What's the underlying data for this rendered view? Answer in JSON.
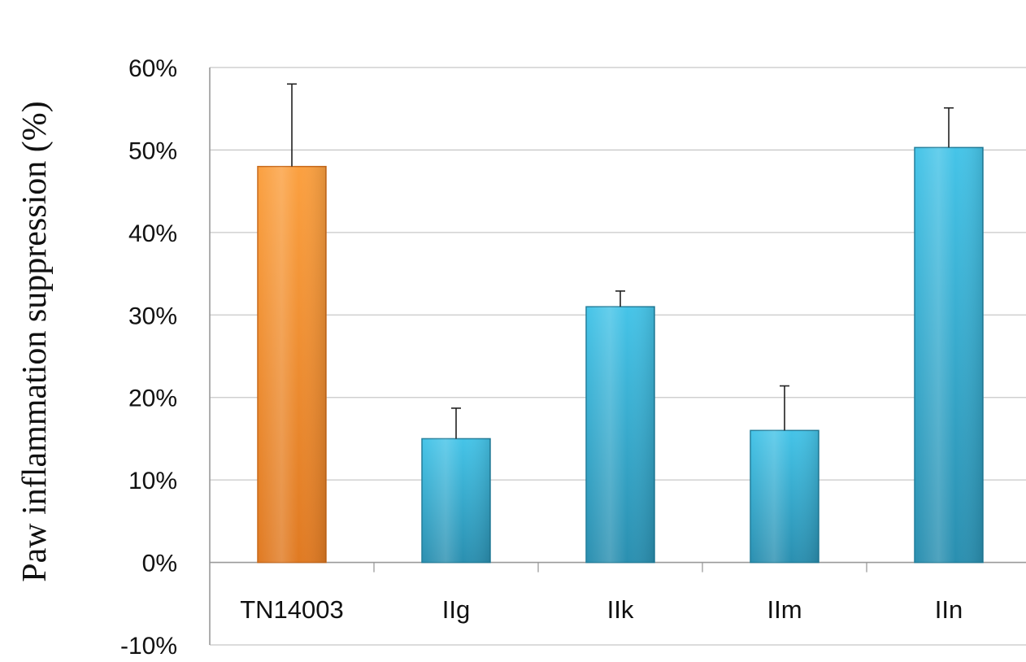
{
  "chart_data": {
    "type": "bar",
    "title": "",
    "xlabel": "",
    "ylabel": "Paw inflammation suppression (%)",
    "categories": [
      "TN14003",
      "IIg",
      "IIk",
      "IIm",
      "IIn"
    ],
    "values": [
      48,
      15,
      31,
      16,
      50.3
    ],
    "error_plus": [
      10,
      3.7,
      1.9,
      5.4,
      4.8
    ],
    "ylim": [
      -10,
      60
    ],
    "yticks": [
      -10,
      0,
      10,
      20,
      30,
      40,
      50,
      60
    ],
    "ytick_labels": [
      "-10%",
      "0%",
      "10%",
      "20%",
      "30%",
      "40%",
      "50%",
      "60%"
    ],
    "grid": true,
    "legend": "none",
    "colors": {
      "orange_top": "#fba040",
      "orange_bottom": "#e07a22",
      "orange_edge": "#c86a1c",
      "blue_top": "#45c4e8",
      "blue_bottom": "#2a8fb0",
      "blue_edge": "#237f9c",
      "grid": "#c8c8c8",
      "axis": "#9a9a9a",
      "error": "#222222"
    }
  }
}
